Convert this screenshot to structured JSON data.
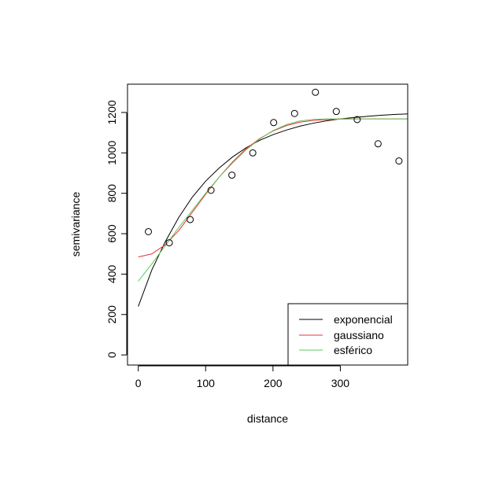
{
  "chart_data": {
    "type": "scatter",
    "xlabel": "distance",
    "ylabel": "semivariance",
    "xlim": [
      -16,
      400
    ],
    "ylim": [
      -50,
      1340
    ],
    "x_ticks": [
      0,
      100,
      200,
      300
    ],
    "y_ticks": [
      0,
      200,
      400,
      600,
      800,
      1000,
      1200
    ],
    "x_tick_labels": [
      "0",
      "100",
      "200",
      "300"
    ],
    "y_tick_labels": [
      "0",
      "200",
      "400",
      "600",
      "800",
      "1000",
      "1200"
    ],
    "points": {
      "marker": "open-circle",
      "x": [
        15,
        46,
        77,
        108,
        139,
        170,
        201,
        232,
        263,
        294,
        325,
        356,
        387
      ],
      "y": [
        610,
        555,
        670,
        815,
        890,
        1000,
        1150,
        1195,
        1300,
        1205,
        1165,
        1045,
        960
      ]
    },
    "series": [
      {
        "name": "exponencial",
        "color": "#000000",
        "x": [
          0,
          20,
          40,
          60,
          80,
          100,
          120,
          140,
          160,
          180,
          200,
          220,
          240,
          260,
          280,
          300,
          320,
          340,
          360,
          380,
          400
        ],
        "y": [
          240,
          420,
          560,
          680,
          780,
          860,
          925,
          980,
          1025,
          1062,
          1090,
          1113,
          1132,
          1147,
          1159,
          1168,
          1175,
          1181,
          1186,
          1190,
          1193
        ]
      },
      {
        "name": "gaussiano",
        "color": "#e8313a",
        "x": [
          0,
          20,
          40,
          60,
          80,
          100,
          120,
          140,
          160,
          180,
          200,
          220,
          240,
          260,
          280,
          300,
          320,
          340,
          360,
          380,
          400
        ],
        "y": [
          485,
          500,
          545,
          615,
          705,
          795,
          880,
          955,
          1020,
          1070,
          1108,
          1135,
          1152,
          1161,
          1165,
          1167,
          1168,
          1168,
          1168,
          1168,
          1168
        ]
      },
      {
        "name": "esférico",
        "color": "#5cc85c",
        "x": [
          0,
          20,
          40,
          60,
          80,
          100,
          120,
          140,
          160,
          180,
          200,
          220,
          240,
          260,
          280,
          300,
          320,
          340,
          360,
          380,
          400
        ],
        "y": [
          365,
          450,
          540,
          630,
          715,
          800,
          880,
          950,
          1015,
          1068,
          1110,
          1140,
          1158,
          1166,
          1168,
          1168,
          1168,
          1168,
          1168,
          1168,
          1168
        ]
      }
    ],
    "legend": {
      "placement": "bottom-right",
      "entries": [
        {
          "label": "exponencial",
          "color": "#000000"
        },
        {
          "label": "gaussiano",
          "color": "#e8313a"
        },
        {
          "label": "esférico",
          "color": "#5cc85c"
        }
      ]
    }
  }
}
